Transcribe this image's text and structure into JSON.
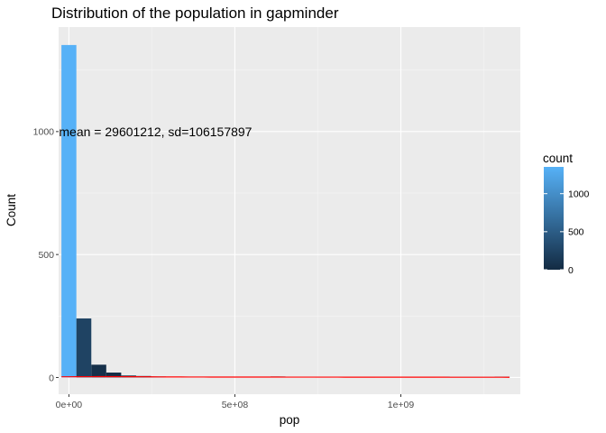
{
  "chart_data": {
    "type": "bar",
    "title": "Distribution of the population in gapminder",
    "xlabel": "pop",
    "ylabel": "Count",
    "x_ticks": [
      {
        "value": 0,
        "label": "0e+00"
      },
      {
        "value": 500000000,
        "label": "5e+08"
      },
      {
        "value": 1000000000,
        "label": "1e+09"
      }
    ],
    "y_ticks": [
      {
        "value": 0,
        "label": "0"
      },
      {
        "value": 500,
        "label": "500"
      },
      {
        "value": 1000,
        "label": "1000"
      }
    ],
    "xlim": [
      -31000000,
      1360000000
    ],
    "ylim": [
      -68,
      1425
    ],
    "bin_width": 45000000,
    "bin_centers": [
      0,
      45000000,
      90000000,
      135000000,
      180000000,
      225000000,
      270000000,
      315000000,
      360000000,
      405000000,
      450000000,
      495000000,
      540000000,
      585000000,
      630000000,
      675000000,
      720000000,
      765000000,
      810000000,
      855000000,
      900000000,
      945000000,
      990000000,
      1035000000,
      1080000000,
      1125000000,
      1170000000,
      1215000000,
      1260000000,
      1305000000
    ],
    "counts": [
      1352,
      240,
      52,
      20,
      8,
      6,
      4,
      3,
      2,
      2,
      2,
      2,
      2,
      2,
      4,
      3,
      3,
      2,
      3,
      2,
      2,
      3,
      3,
      2,
      2,
      3,
      2,
      2,
      2,
      3
    ],
    "annotation": "mean = 29601212, sd=106157897",
    "annotation_position": {
      "x": 500000000,
      "y": 1000
    },
    "density_line_color": "#ff0000",
    "legend": {
      "title": "count",
      "placement": "right",
      "ticks": [
        0,
        500,
        1000
      ],
      "color_low": "#132b43",
      "color_high": "#56b1f7",
      "range": [
        0,
        1352
      ]
    },
    "panel_background": "#ebebeb",
    "grid": true
  }
}
